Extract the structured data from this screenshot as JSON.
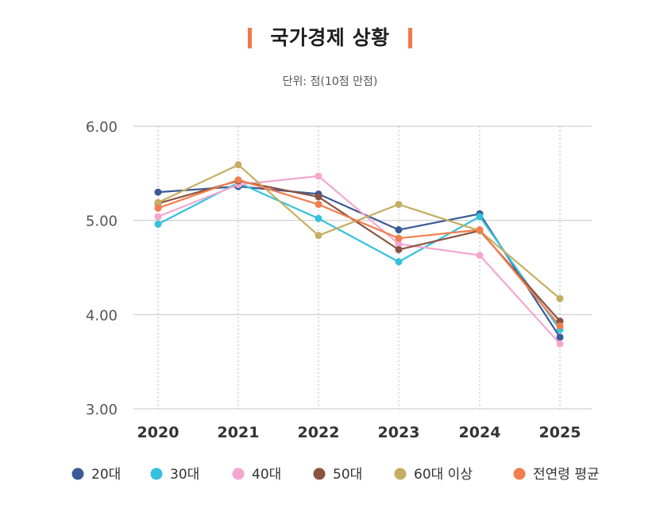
{
  "chart_data": {
    "type": "line",
    "title": "국가경제 상황",
    "subtitle": "단위: 점(10점 만점)",
    "categories": [
      "2020",
      "2021",
      "2022",
      "2023",
      "2024",
      "2025"
    ],
    "ylim": [
      3.0,
      6.0
    ],
    "yticks": [
      "3.00",
      "4.00",
      "5.00",
      "6.00"
    ],
    "ytick_values": [
      3,
      4,
      5,
      6
    ],
    "grid": true,
    "legend_position": "bottom",
    "series": [
      {
        "name": "20대",
        "color": "#3a5a95",
        "values": [
          5.3,
          5.36,
          5.28,
          4.9,
          5.07,
          3.76
        ]
      },
      {
        "name": "30대",
        "color": "#33c1de",
        "values": [
          4.96,
          5.4,
          5.02,
          4.56,
          5.04,
          3.84
        ]
      },
      {
        "name": "40대",
        "color": "#f3a7cf",
        "values": [
          5.04,
          5.38,
          5.47,
          4.75,
          4.63,
          3.69
        ]
      },
      {
        "name": "50대",
        "color": "#8a5340",
        "values": [
          5.18,
          5.42,
          5.25,
          4.69,
          4.89,
          3.93
        ]
      },
      {
        "name": "60대 이상",
        "color": "#c5ae63",
        "values": [
          5.19,
          5.59,
          4.84,
          5.17,
          4.89,
          4.17
        ]
      },
      {
        "name": "전연령 평균",
        "color": "#f27d4e",
        "values": [
          5.13,
          5.43,
          5.17,
          4.81,
          4.9,
          3.88
        ]
      }
    ]
  }
}
